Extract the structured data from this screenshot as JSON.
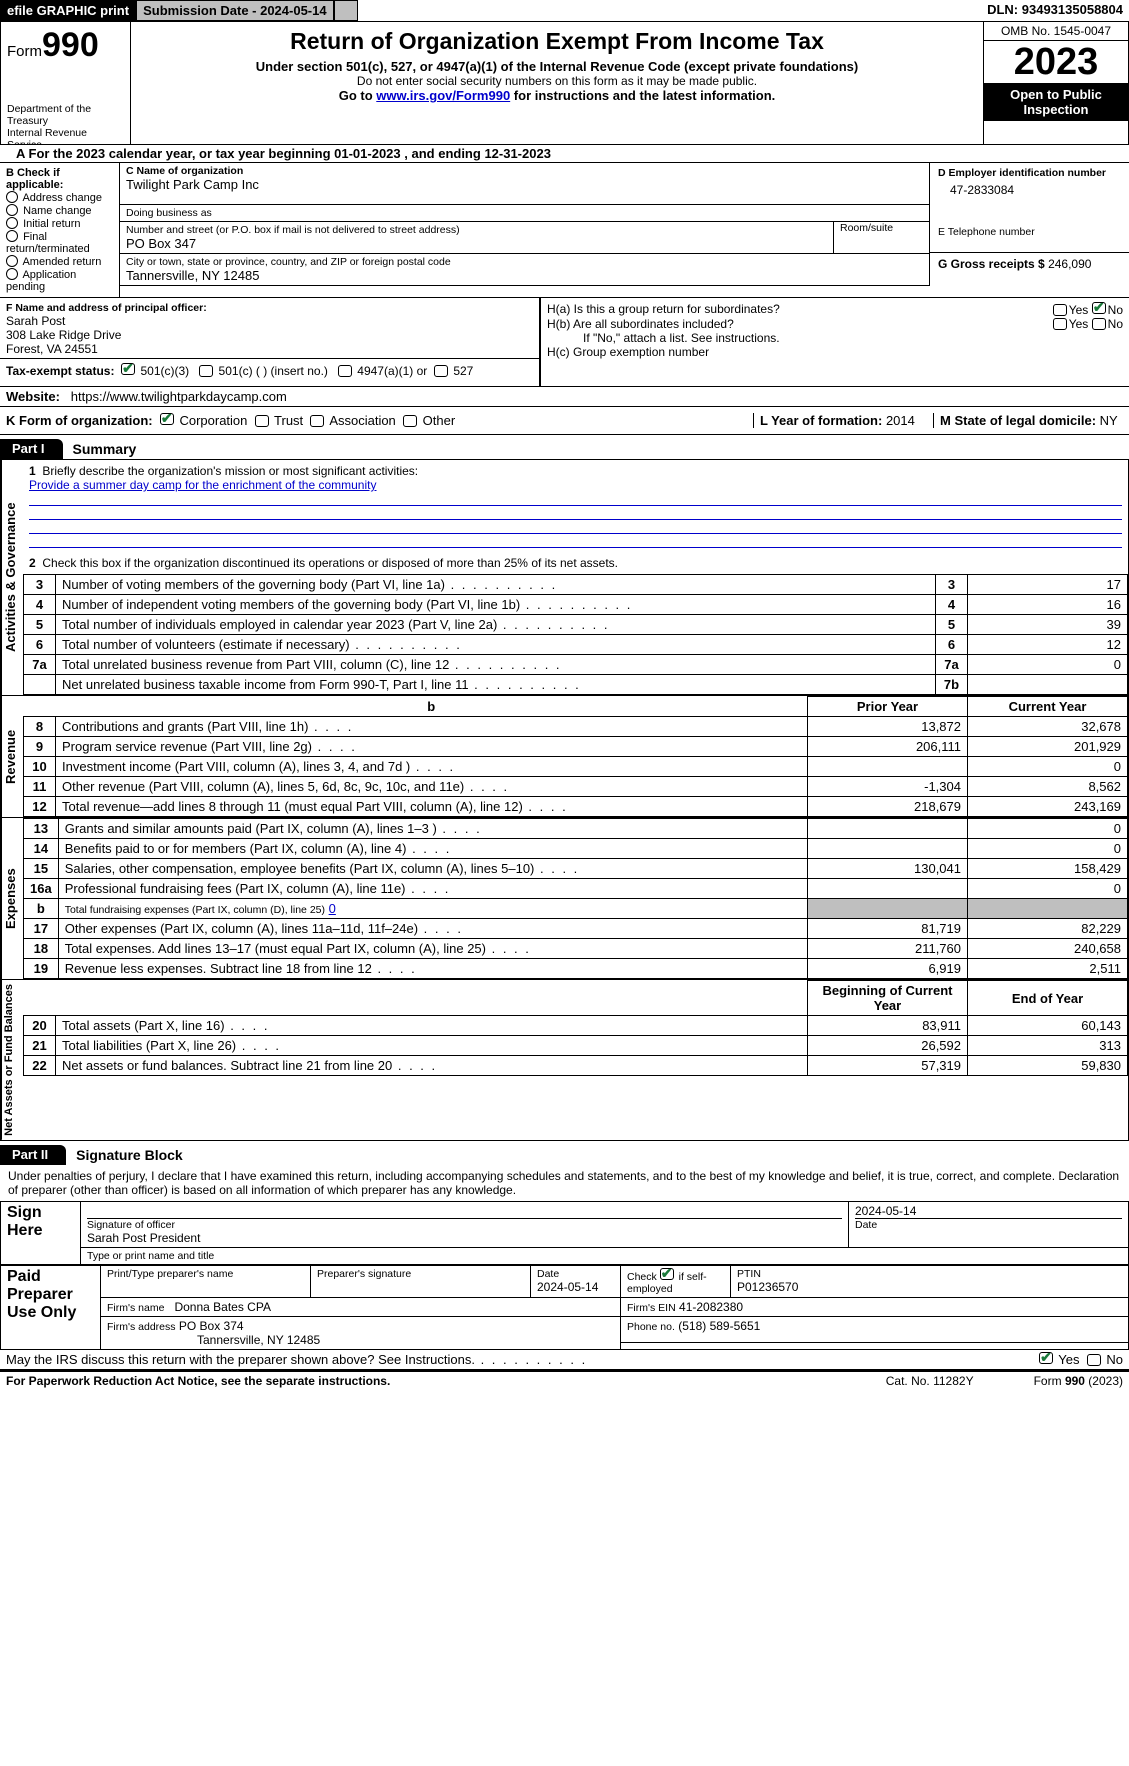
{
  "topbar": {
    "efile": "efile GRAPHIC print",
    "submission": "Submission Date - 2024-05-14",
    "dln_label": "DLN:",
    "dln": "93493135058804"
  },
  "header": {
    "form_prefix": "Form",
    "form_number": "990",
    "dept": "Department of the Treasury\nInternal Revenue Service",
    "title": "Return of Organization Exempt From Income Tax",
    "sub": "Under section 501(c), 527, or 4947(a)(1) of the Internal Revenue Code (except private foundations)",
    "sub2": "Do not enter social security numbers on this form as it may be made public.",
    "goto_pre": "Go to ",
    "goto_link": "www.irs.gov/Form990",
    "goto_post": " for instructions and the latest information.",
    "omb": "OMB No. 1545-0047",
    "year": "2023",
    "open": "Open to Public Inspection"
  },
  "period": {
    "a_pre": "A For the 2023 calendar year, or tax year beginning ",
    "begin": "01-01-2023",
    "mid": " , and ending ",
    "end": "12-31-2023"
  },
  "boxB": {
    "heading": "B Check if applicable:",
    "items": [
      "Address change",
      "Name change",
      "Initial return",
      "Final return/terminated",
      "Amended return",
      "Application pending"
    ]
  },
  "boxC": {
    "name_lbl": "C Name of organization",
    "name": "Twilight Park Camp Inc",
    "dba_lbl": "Doing business as",
    "dba": "",
    "street_lbl": "Number and street (or P.O. box if mail is not delivered to street address)",
    "street": "PO Box 347",
    "room_lbl": "Room/suite",
    "room": "",
    "city_lbl": "City or town, state or province, country, and ZIP or foreign postal code",
    "city": "Tannersville, NY  12485"
  },
  "boxD": {
    "lbl": "D Employer identification number",
    "val": "47-2833084"
  },
  "boxE": {
    "lbl": "E Telephone number",
    "val": ""
  },
  "boxG": {
    "lbl": "G Gross receipts $",
    "val": "246,090"
  },
  "boxF": {
    "lbl": "F  Name and address of principal officer:",
    "name": "Sarah Post",
    "addr1": "308 Lake Ridge Drive",
    "addr2": "Forest, VA  24551"
  },
  "boxH": {
    "a": "H(a)  Is this a group return for subordinates?",
    "b": "H(b)  Are all subordinates included?",
    "b_note": "If \"No,\" attach a list. See instructions.",
    "c": "H(c)  Group exemption number"
  },
  "taxI": {
    "lbl": "Tax-exempt status:",
    "o1": "501(c)(3)",
    "o2": "501(c) (  ) (insert no.)",
    "o3": "4947(a)(1) or",
    "o4": "527"
  },
  "boxJ": {
    "lbl": "Website:",
    "val": "https://www.twilightparkdaycamp.com"
  },
  "boxK": {
    "lbl": "K Form of organization:",
    "opts": [
      "Corporation",
      "Trust",
      "Association",
      "Other"
    ]
  },
  "boxL": {
    "lbl": "L Year of formation:",
    "val": "2014"
  },
  "boxM": {
    "lbl": "M State of legal domicile:",
    "val": "NY"
  },
  "part1": {
    "tab": "Part I",
    "title": "Summary"
  },
  "mission": {
    "num": "1",
    "lbl": "Briefly describe the organization's mission or most significant activities:",
    "text": "Provide a summer day camp for the enrichment of the community"
  },
  "gov": {
    "side": "Activities & Governance",
    "l2": "Check this box  if the organization discontinued its operations or disposed of more than 25% of its net assets.",
    "rows": [
      {
        "n": "3",
        "d": "Number of voting members of the governing body (Part VI, line 1a)",
        "b": "3",
        "v": "17"
      },
      {
        "n": "4",
        "d": "Number of independent voting members of the governing body (Part VI, line 1b)",
        "b": "4",
        "v": "16"
      },
      {
        "n": "5",
        "d": "Total number of individuals employed in calendar year 2023 (Part V, line 2a)",
        "b": "5",
        "v": "39"
      },
      {
        "n": "6",
        "d": "Total number of volunteers (estimate if necessary)",
        "b": "6",
        "v": "12"
      },
      {
        "n": "7a",
        "d": "Total unrelated business revenue from Part VIII, column (C), line 12",
        "b": "7a",
        "v": "0"
      },
      {
        "n": "",
        "d": "Net unrelated business taxable income from Form 990-T, Part I, line 11",
        "b": "7b",
        "v": ""
      }
    ]
  },
  "rev": {
    "side": "Revenue",
    "h1": "Prior Year",
    "h2": "Current Year",
    "rows": [
      {
        "n": "8",
        "d": "Contributions and grants (Part VIII, line 1h)",
        "p": "13,872",
        "c": "32,678"
      },
      {
        "n": "9",
        "d": "Program service revenue (Part VIII, line 2g)",
        "p": "206,111",
        "c": "201,929"
      },
      {
        "n": "10",
        "d": "Investment income (Part VIII, column (A), lines 3, 4, and 7d )",
        "p": "",
        "c": "0"
      },
      {
        "n": "11",
        "d": "Other revenue (Part VIII, column (A), lines 5, 6d, 8c, 9c, 10c, and 11e)",
        "p": "-1,304",
        "c": "8,562"
      },
      {
        "n": "12",
        "d": "Total revenue—add lines 8 through 11 (must equal Part VIII, column (A), line 12)",
        "p": "218,679",
        "c": "243,169"
      }
    ]
  },
  "exp": {
    "side": "Expenses",
    "rows": [
      {
        "n": "13",
        "d": "Grants and similar amounts paid (Part IX, column (A), lines 1–3 )",
        "p": "",
        "c": "0"
      },
      {
        "n": "14",
        "d": "Benefits paid to or for members (Part IX, column (A), line 4)",
        "p": "",
        "c": "0"
      },
      {
        "n": "15",
        "d": "Salaries, other compensation, employee benefits (Part IX, column (A), lines 5–10)",
        "p": "130,041",
        "c": "158,429"
      },
      {
        "n": "16a",
        "d": "Professional fundraising fees (Part IX, column (A), line 11e)",
        "p": "",
        "c": "0"
      }
    ],
    "l16b_n": "b",
    "l16b": "Total fundraising expenses (Part IX, column (D), line 25)",
    "l16b_v": "0",
    "rows2": [
      {
        "n": "17",
        "d": "Other expenses (Part IX, column (A), lines 11a–11d, 11f–24e)",
        "p": "81,719",
        "c": "82,229"
      },
      {
        "n": "18",
        "d": "Total expenses. Add lines 13–17 (must equal Part IX, column (A), line 25)",
        "p": "211,760",
        "c": "240,658"
      },
      {
        "n": "19",
        "d": "Revenue less expenses. Subtract line 18 from line 12",
        "p": "6,919",
        "c": "2,511"
      }
    ]
  },
  "net": {
    "side": "Net Assets or Fund Balances",
    "h1": "Beginning of Current Year",
    "h2": "End of Year",
    "rows": [
      {
        "n": "20",
        "d": "Total assets (Part X, line 16)",
        "p": "83,911",
        "c": "60,143"
      },
      {
        "n": "21",
        "d": "Total liabilities (Part X, line 26)",
        "p": "26,592",
        "c": "313"
      },
      {
        "n": "22",
        "d": "Net assets or fund balances. Subtract line 21 from line 20",
        "p": "57,319",
        "c": "59,830"
      }
    ]
  },
  "part2": {
    "tab": "Part II",
    "title": "Signature Block"
  },
  "sig": {
    "decl": "Under penalties of perjury, I declare that I have examined this return, including accompanying schedules and statements, and to the best of my knowledge and belief, it is true, correct, and complete. Declaration of preparer (other than officer) is based on all information of which preparer has any knowledge.",
    "sign_here": "Sign Here",
    "sig_of_officer": "Signature of officer",
    "officer_name": "Sarah Post President",
    "type_lbl": "Type or print name and title",
    "date_lbl": "Date",
    "date": "2024-05-14",
    "paid": "Paid Preparer Use Only",
    "prep_name_lbl": "Print/Type preparer's name",
    "prep_sig_lbl": "Preparer's signature",
    "prep_date_lbl": "Date",
    "prep_date": "2024-05-14",
    "self_emp": "Check  if self-employed",
    "ptin_lbl": "PTIN",
    "ptin": "P01236570",
    "firm_name_lbl": "Firm's name",
    "firm_name": "Donna Bates CPA",
    "firm_ein_lbl": "Firm's EIN",
    "firm_ein": "41-2082380",
    "firm_addr_lbl": "Firm's address",
    "firm_addr1": "PO Box 374",
    "firm_addr2": "Tannersville, NY  12485",
    "phone_lbl": "Phone no.",
    "phone": "(518) 589-5651",
    "discuss": "May the IRS discuss this return with the preparer shown above? See Instructions.",
    "yes": "Yes",
    "no": "No"
  },
  "footer": {
    "pra": "For Paperwork Reduction Act Notice, see the separate instructions.",
    "cat": "Cat. No. 11282Y",
    "form": "Form 990 (2023)"
  },
  "style": {
    "link_color": "#0000cc",
    "check_color": "#1a7a3a",
    "gray": "#bfbfbf"
  }
}
